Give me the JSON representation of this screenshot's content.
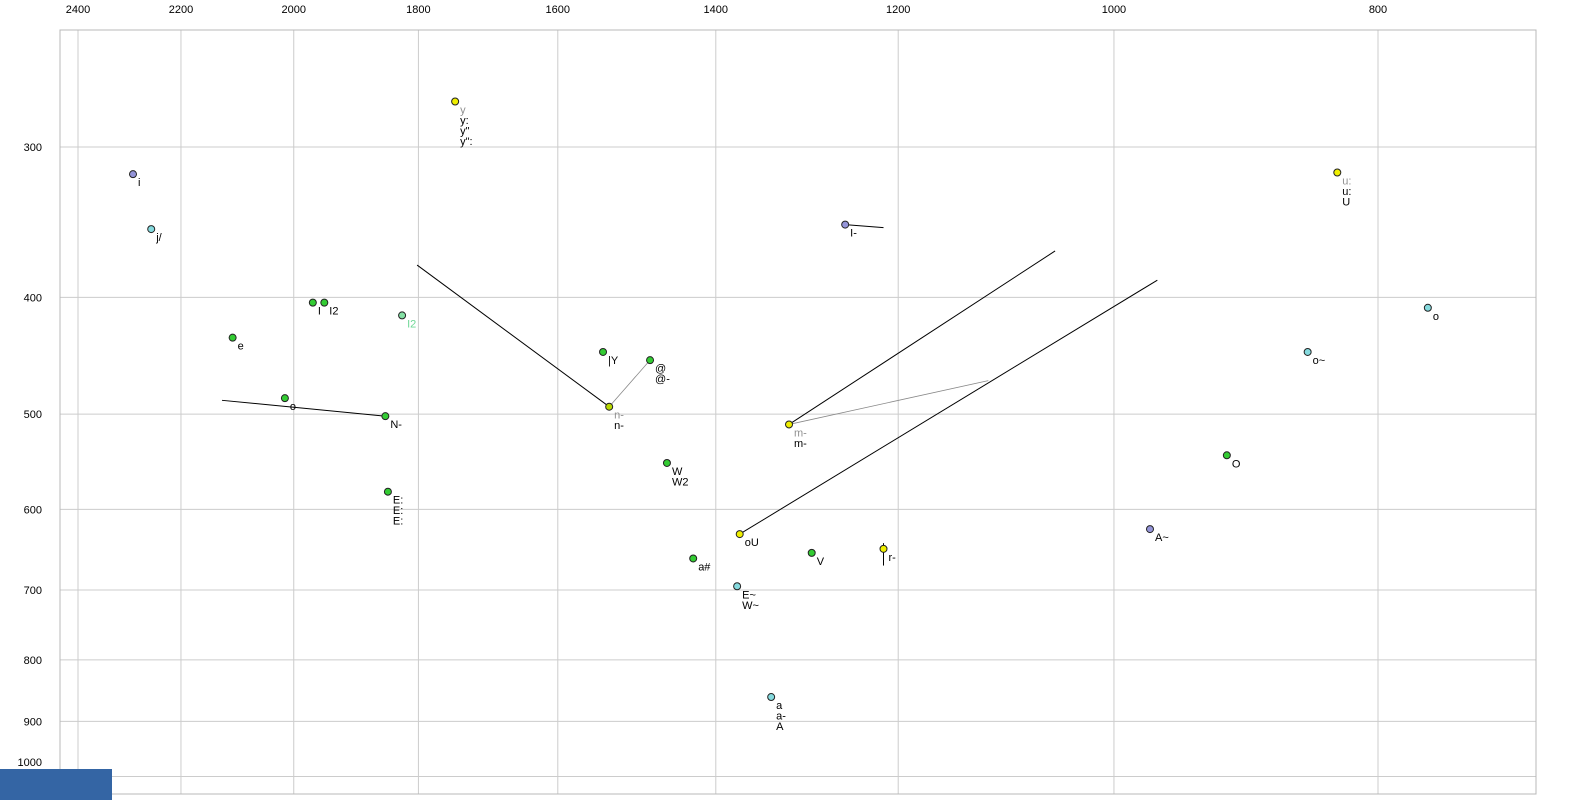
{
  "chart_data": {
    "type": "scatter",
    "title": "",
    "xlabel": "",
    "ylabel": "",
    "x_axis": {
      "unit": "Hz",
      "scale": "log",
      "reversed": true,
      "ticks": [
        2400,
        2200,
        2000,
        1800,
        1600,
        1400,
        1200,
        1000,
        800
      ]
    },
    "y_axis": {
      "unit": "Hz",
      "scale": "log",
      "direction": "down",
      "ticks": [
        300,
        400,
        500,
        600,
        700,
        800,
        900,
        1000
      ]
    },
    "points": [
      {
        "f2": 1745,
        "f1": 275,
        "color": "yellow",
        "labels": [
          {
            "t": "y",
            "c": "gray"
          },
          {
            "t": "y:"
          },
          {
            "t": "y\""
          },
          {
            "t": "y\":"
          }
        ]
      },
      {
        "f2": 2291,
        "f1": 316,
        "color": "periwinkle",
        "labels": [
          {
            "t": "i"
          }
        ]
      },
      {
        "f2": 2256,
        "f1": 351,
        "color": "cyan",
        "labels": [
          {
            "t": "j/"
          }
        ]
      },
      {
        "f2": 1968,
        "f1": 404,
        "color": "green",
        "labels": [
          {
            "t": "I"
          }
        ]
      },
      {
        "f2": 1949,
        "f1": 404,
        "color": "green",
        "labels": [
          {
            "t": "I2"
          }
        ]
      },
      {
        "f2": 1825,
        "f1": 414,
        "color": "mint",
        "labels": [
          {
            "t": "I2",
            "c": "mint"
          }
        ]
      },
      {
        "f2": 2106,
        "f1": 432,
        "color": "green",
        "labels": [
          {
            "t": "e"
          }
        ]
      },
      {
        "f2": 2015,
        "f1": 485,
        "color": "green",
        "labels": [
          {
            "t": "o"
          }
        ]
      },
      {
        "f2": 1851,
        "f1": 502,
        "color": "green",
        "labels": [
          {
            "t": "N-"
          }
        ]
      },
      {
        "f2": 1540,
        "f1": 444,
        "color": "green",
        "labels": [
          {
            "t": "|Y"
          }
        ]
      },
      {
        "f2": 1480,
        "f1": 451,
        "color": "green",
        "labels": [
          {
            "t": "@"
          },
          {
            "t": "@-"
          }
        ]
      },
      {
        "f2": 1532,
        "f1": 493,
        "color": "yellowgreen",
        "labels": [
          {
            "t": "n-",
            "c": "gray"
          },
          {
            "t": "n-"
          }
        ]
      },
      {
        "f2": 1316,
        "f1": 510,
        "color": "yellow",
        "labels": [
          {
            "t": "m-",
            "c": "gray"
          },
          {
            "t": "m-"
          }
        ]
      },
      {
        "f2": 1255,
        "f1": 348,
        "color": "periwinkle",
        "labels": [
          {
            "t": "I-"
          }
        ]
      },
      {
        "f2": 1459,
        "f1": 549,
        "color": "green",
        "labels": [
          {
            "t": "W"
          },
          {
            "t": "W2"
          }
        ]
      },
      {
        "f2": 1847,
        "f1": 580,
        "color": "green",
        "labels": [
          {
            "t": "E:"
          },
          {
            "t": "E:"
          },
          {
            "t": "E:"
          }
        ]
      },
      {
        "f2": 1372,
        "f1": 629,
        "color": "yellow",
        "labels": [
          {
            "t": "oU"
          }
        ]
      },
      {
        "f2": 1427,
        "f1": 659,
        "color": "green",
        "labels": [
          {
            "t": "a#"
          }
        ]
      },
      {
        "f2": 1291,
        "f1": 652,
        "color": "green",
        "labels": [
          {
            "t": "V"
          }
        ]
      },
      {
        "f2": 1215,
        "f1": 647,
        "color": "yellow",
        "labels": [
          {
            "t": "r-"
          }
        ]
      },
      {
        "f2": 1375,
        "f1": 695,
        "color": "cyan",
        "labels": [
          {
            "t": "E~"
          },
          {
            "t": "W~"
          }
        ]
      },
      {
        "f2": 970,
        "f1": 623,
        "color": "periwinkle",
        "labels": [
          {
            "t": "A~"
          }
        ]
      },
      {
        "f2": 909,
        "f1": 541,
        "color": "green",
        "labels": [
          {
            "t": "O"
          }
        ]
      },
      {
        "f2": 828,
        "f1": 315,
        "color": "yellow",
        "labels": [
          {
            "t": "u:",
            "c": "gray"
          },
          {
            "t": "u:"
          },
          {
            "t": "U"
          }
        ]
      },
      {
        "f2": 767,
        "f1": 408,
        "color": "cyan",
        "labels": [
          {
            "t": "o"
          }
        ]
      },
      {
        "f2": 849,
        "f1": 444,
        "color": "cyan",
        "labels": [
          {
            "t": "o~"
          }
        ]
      },
      {
        "f2": 1336,
        "f1": 859,
        "color": "cyan",
        "labels": [
          {
            "t": "a"
          },
          {
            "t": "a-"
          },
          {
            "t": "A"
          }
        ]
      }
    ],
    "lines": [
      {
        "a": [
          1802,
          376
        ],
        "b": [
          1532,
          493
        ],
        "light": false
      },
      {
        "a": [
          2125,
          487
        ],
        "b": [
          1851,
          502
        ],
        "light": false
      },
      {
        "a": [
          1051,
          366
        ],
        "b": [
          1316,
          510
        ],
        "light": false
      },
      {
        "a": [
          1316,
          510
        ],
        "b": [
          1112,
          469
        ],
        "light": true
      },
      {
        "a": [
          964,
          387
        ],
        "b": [
          1372,
          629
        ],
        "light": false
      },
      {
        "a": [
          1255,
          348
        ],
        "b": [
          1215,
          350
        ],
        "light": false
      },
      {
        "a": [
          1480,
          451
        ],
        "b": [
          1532,
          493
        ],
        "light": true
      },
      {
        "a": [
          1215,
          640
        ],
        "b": [
          1215,
          668
        ],
        "light": false
      }
    ]
  },
  "colors": {
    "background": "#ffffff",
    "grid": "#cccccc",
    "border": "#b8b8b8",
    "line": "#000000",
    "line_light": "#888888",
    "label": "#000000",
    "label_gray": "#909090",
    "dot_stroke": "#222222",
    "corner_block": "#3465a4",
    "palette": {
      "green": "#33cc33",
      "mint": "#84e0a4",
      "mint_label": "#6fd796",
      "yellow": "#efef00",
      "yellowgreen": "#b8d800",
      "cyan": "#85dade",
      "periwinkle": "#9494d8"
    }
  }
}
